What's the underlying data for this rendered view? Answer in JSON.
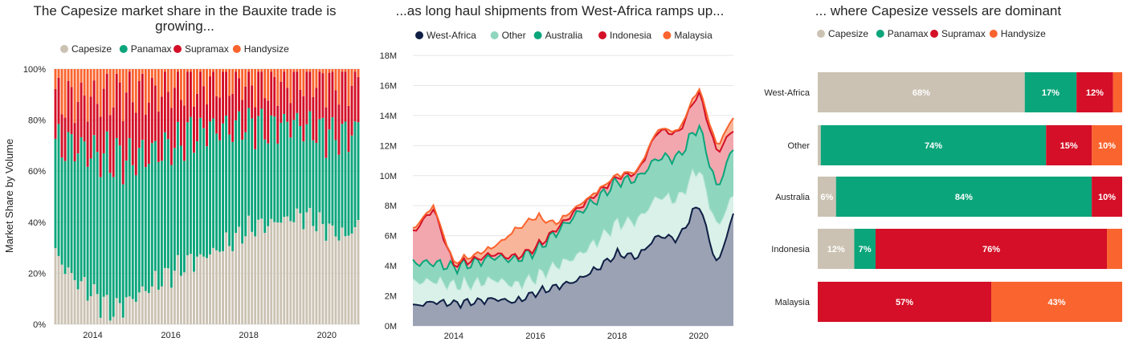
{
  "colors": {
    "capesize": "#cbc2b3",
    "panamax": "#0ba57b",
    "supramax": "#d40f27",
    "handysize": "#fa642e",
    "west_africa": "#0e1e44",
    "other": "#8fd6bf",
    "australia": "#0ba57b",
    "indonesia": "#d40f27",
    "malaysia": "#fa642e"
  },
  "chart_data": [
    {
      "type": "bar",
      "stacked": true,
      "title": "The Capesize market share in the Bauxite trade is growing...",
      "ylabel": "Market Share by Volume",
      "ylim": [
        0,
        100
      ],
      "yticks": [
        "0%",
        "20%",
        "40%",
        "60%",
        "80%",
        "100%"
      ],
      "xticks": [
        "2014",
        "2016",
        "2018",
        "2020"
      ],
      "x_range": [
        2013.0,
        2020.85
      ],
      "series": [
        {
          "name": "Capesize",
          "color_key": "capesize"
        },
        {
          "name": "Panamax",
          "color_key": "panamax"
        },
        {
          "name": "Supramax",
          "color_key": "supramax"
        },
        {
          "name": "Handysize",
          "color_key": "handysize"
        }
      ],
      "keyframes": [
        {
          "t": 2013.0,
          "cape": 28,
          "pana": 42,
          "supra": 18
        },
        {
          "t": 2013.5,
          "cape": 18,
          "pana": 52,
          "supra": 18
        },
        {
          "t": 2014.0,
          "cape": 12,
          "pana": 55,
          "supra": 21
        },
        {
          "t": 2014.5,
          "cape": 5,
          "pana": 60,
          "supra": 25
        },
        {
          "t": 2015.0,
          "cape": 10,
          "pana": 55,
          "supra": 26
        },
        {
          "t": 2015.5,
          "cape": 15,
          "pana": 52,
          "supra": 23
        },
        {
          "t": 2016.0,
          "cape": 20,
          "pana": 50,
          "supra": 22
        },
        {
          "t": 2016.5,
          "cape": 25,
          "pana": 50,
          "supra": 19
        },
        {
          "t": 2017.0,
          "cape": 28,
          "pana": 50,
          "supra": 17
        },
        {
          "t": 2017.5,
          "cape": 32,
          "pana": 45,
          "supra": 18
        },
        {
          "t": 2018.0,
          "cape": 38,
          "pana": 42,
          "supra": 15
        },
        {
          "t": 2018.5,
          "cape": 40,
          "pana": 38,
          "supra": 17
        },
        {
          "t": 2019.0,
          "cape": 42,
          "pana": 38,
          "supra": 15
        },
        {
          "t": 2019.5,
          "cape": 43,
          "pana": 35,
          "supra": 18
        },
        {
          "t": 2020.0,
          "cape": 38,
          "pana": 38,
          "supra": 20
        },
        {
          "t": 2020.5,
          "cape": 35,
          "pana": 40,
          "supra": 20
        },
        {
          "t": 2020.85,
          "cape": 40,
          "pana": 38,
          "supra": 18
        }
      ]
    },
    {
      "type": "area",
      "stacked": true,
      "title": "...as long haul shipments from West-Africa ramps up...",
      "ylim": [
        0,
        18
      ],
      "yticks": [
        "0M",
        "2M",
        "4M",
        "6M",
        "8M",
        "10M",
        "12M",
        "14M",
        "16M",
        "18M"
      ],
      "xticks": [
        "2014",
        "2016",
        "2018",
        "2020"
      ],
      "x_range": [
        2013.0,
        2020.85
      ],
      "series": [
        {
          "name": "West-Africa",
          "color_key": "west_africa"
        },
        {
          "name": "Other",
          "color_key": "other"
        },
        {
          "name": "Australia",
          "color_key": "australia"
        },
        {
          "name": "Indonesia",
          "color_key": "indonesia"
        },
        {
          "name": "Malaysia",
          "color_key": "malaysia"
        }
      ],
      "keyframes": [
        {
          "t": 2013.0,
          "wa": 1.3,
          "other": 1.6,
          "aus": 1.3,
          "indo": 2.0,
          "malay": 0.2
        },
        {
          "t": 2013.5,
          "wa": 1.6,
          "other": 1.4,
          "aus": 1.2,
          "indo": 3.6,
          "malay": 0.2
        },
        {
          "t": 2014.0,
          "wa": 1.5,
          "other": 1.2,
          "aus": 1.2,
          "indo": 0.1,
          "malay": 0.1
        },
        {
          "t": 2014.5,
          "wa": 1.6,
          "other": 1.2,
          "aus": 1.4,
          "indo": 0.2,
          "malay": 0.3
        },
        {
          "t": 2015.0,
          "wa": 1.8,
          "other": 1.3,
          "aus": 1.5,
          "indo": 0.2,
          "malay": 0.5
        },
        {
          "t": 2015.5,
          "wa": 1.6,
          "other": 1.1,
          "aus": 1.7,
          "indo": 0.1,
          "malay": 1.8
        },
        {
          "t": 2016.0,
          "wa": 2.2,
          "other": 1.0,
          "aus": 1.8,
          "indo": 0.1,
          "malay": 2.1
        },
        {
          "t": 2016.5,
          "wa": 2.6,
          "other": 1.4,
          "aus": 2.2,
          "indo": 0.2,
          "malay": 0.4
        },
        {
          "t": 2017.0,
          "wa": 3.0,
          "other": 1.6,
          "aus": 2.8,
          "indo": 0.3,
          "malay": 0.2
        },
        {
          "t": 2017.5,
          "wa": 3.8,
          "other": 1.8,
          "aus": 2.8,
          "indo": 0.4,
          "malay": 0.1
        },
        {
          "t": 2018.0,
          "wa": 4.8,
          "other": 2.0,
          "aus": 2.8,
          "indo": 0.3,
          "malay": 0.1
        },
        {
          "t": 2018.5,
          "wa": 4.6,
          "other": 2.4,
          "aus": 2.8,
          "indo": 0.4,
          "malay": 0.1
        },
        {
          "t": 2019.0,
          "wa": 6.0,
          "other": 2.6,
          "aus": 2.6,
          "indo": 1.8,
          "malay": 0.1
        },
        {
          "t": 2019.5,
          "wa": 5.8,
          "other": 2.6,
          "aus": 2.8,
          "indo": 1.6,
          "malay": 0.1
        },
        {
          "t": 2020.0,
          "wa": 8.2,
          "other": 2.4,
          "aus": 2.8,
          "indo": 2.2,
          "malay": 0.3
        },
        {
          "t": 2020.45,
          "wa": 4.0,
          "other": 2.5,
          "aus": 2.6,
          "indo": 2.4,
          "malay": 0.4
        },
        {
          "t": 2020.85,
          "wa": 7.4,
          "other": 1.3,
          "aus": 3.2,
          "indo": 1.2,
          "malay": 0.8
        }
      ]
    },
    {
      "type": "bar",
      "orientation": "horizontal",
      "stacked": true,
      "title": "... where Capesize vessels are dominant",
      "xlim": [
        0,
        100
      ],
      "series": [
        {
          "name": "Capesize",
          "color_key": "capesize"
        },
        {
          "name": "Panamax",
          "color_key": "panamax"
        },
        {
          "name": "Supramax",
          "color_key": "supramax"
        },
        {
          "name": "Handysize",
          "color_key": "handysize"
        }
      ],
      "categories": [
        {
          "name": "West-Africa",
          "values": [
            68,
            17,
            12,
            3
          ],
          "labels": [
            "68%",
            "17%",
            "12%",
            ""
          ]
        },
        {
          "name": "Other",
          "values": [
            1,
            74,
            15,
            10
          ],
          "labels": [
            "",
            "74%",
            "15%",
            "10%"
          ]
        },
        {
          "name": "Australia",
          "values": [
            6,
            84,
            10,
            0
          ],
          "labels": [
            "6%",
            "84%",
            "10%",
            ""
          ]
        },
        {
          "name": "Indonesia",
          "values": [
            12,
            7,
            76,
            5
          ],
          "labels": [
            "12%",
            "7%",
            "76%",
            ""
          ]
        },
        {
          "name": "Malaysia",
          "values": [
            0,
            0,
            57,
            43
          ],
          "labels": [
            "",
            "",
            "57%",
            "43%"
          ]
        }
      ]
    }
  ]
}
